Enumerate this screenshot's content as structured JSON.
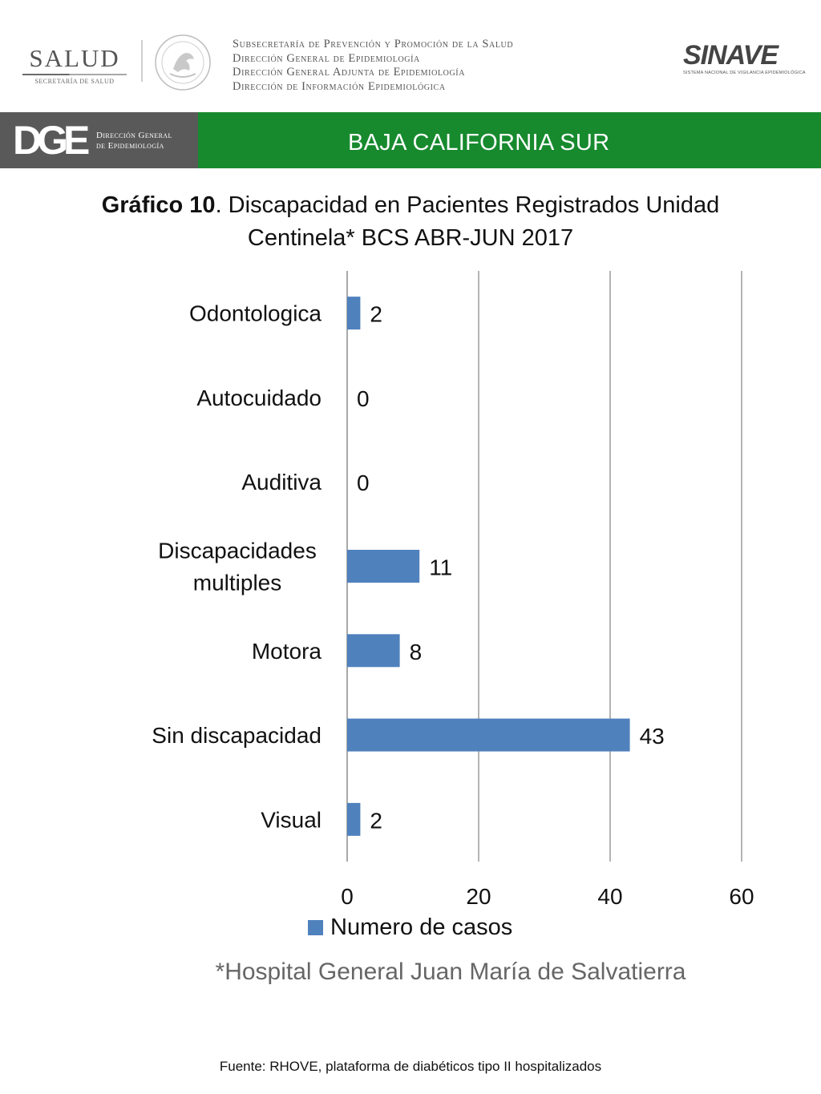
{
  "header": {
    "salud_logo": {
      "word": "SALUD",
      "subtitle": "SECRETARÍA DE SALUD"
    },
    "agency_lines": [
      "Subsecretaría de Prevención y Promoción de la Salud",
      "Dirección General de Epidemiología",
      "Dirección General Adjunta de Epidemiología",
      "Dirección de Información Epidemiológica"
    ],
    "sinave_logo": {
      "word": "SINAVE",
      "subtitle": "SISTEMA NACIONAL DE VIGILANCIA EPIDEMIOLÓGICA"
    }
  },
  "band": {
    "dge_mark": "DGE",
    "dge_text_lines": [
      "Dirección General",
      "de Epidemiología"
    ],
    "region": "BAJA CALIFORNIA SUR",
    "colors": {
      "gray": "#595959",
      "green": "#178a2e"
    }
  },
  "title": {
    "bold": "Gráfico 10",
    "rest": ". Discapacidad en Pacientes Registrados  Unidad Centinela* BCS ABR-JUN 2017"
  },
  "chart_data": {
    "type": "bar",
    "orientation": "horizontal",
    "categories": [
      "Odontologica",
      "Autocuidado",
      "Auditiva",
      "Discapacidades multiples",
      "Motora",
      "Sin discapacidad",
      "Visual"
    ],
    "category_lines": [
      [
        "Odontologica"
      ],
      [
        "Autocuidado"
      ],
      [
        "Auditiva"
      ],
      [
        "Discapacidades",
        "multiples"
      ],
      [
        "Motora"
      ],
      [
        "Sin discapacidad"
      ],
      [
        "Visual"
      ]
    ],
    "series": [
      {
        "name": "Numero de casos",
        "values": [
          2,
          0,
          0,
          11,
          8,
          43,
          2
        ],
        "color": "#4f81bd"
      }
    ],
    "x_ticks": [
      0,
      20,
      40,
      60
    ],
    "xlim": [
      0,
      60
    ],
    "grid": true,
    "legend_position": "bottom"
  },
  "legend": {
    "label": "Numero de casos"
  },
  "note": "*Hospital General Juan María de Salvatierra",
  "source": "Fuente: RHOVE, plataforma de diabéticos tipo II hospitalizados"
}
